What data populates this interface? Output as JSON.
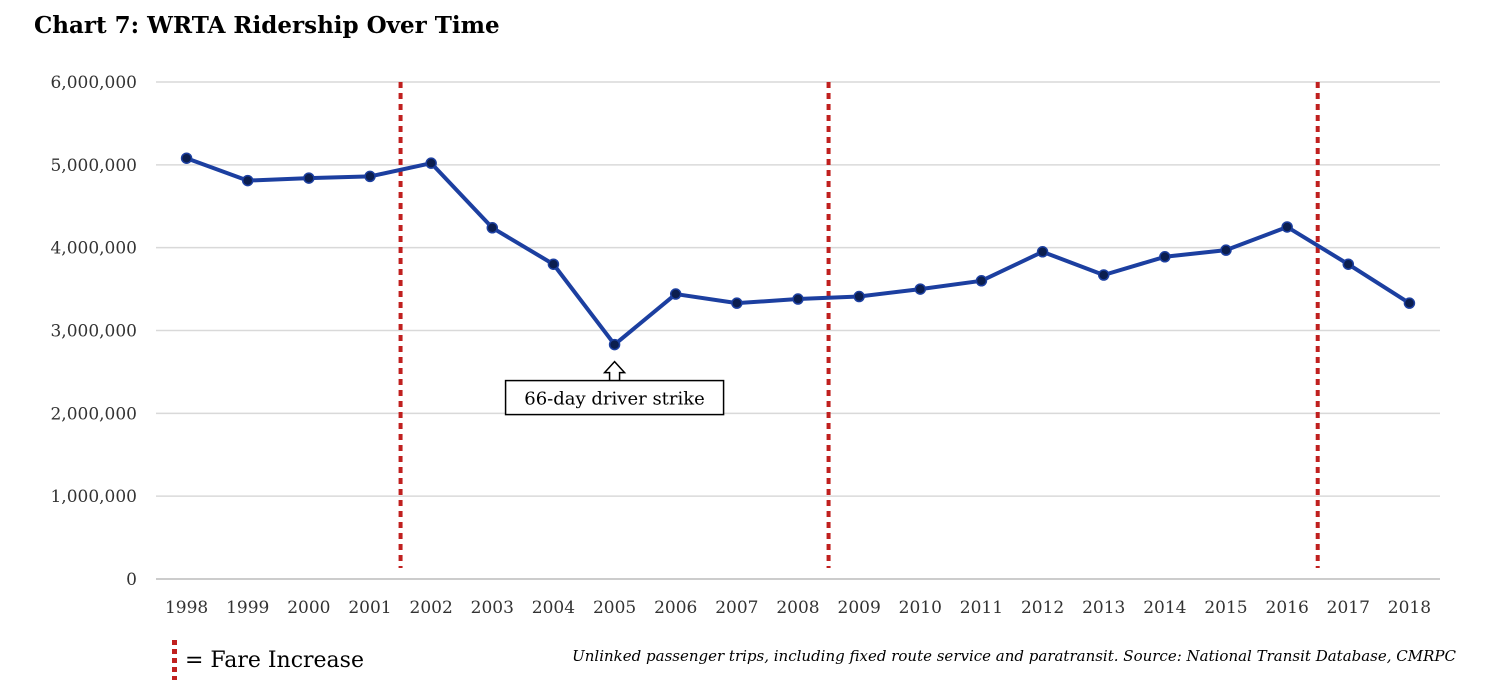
{
  "chart_data": {
    "type": "line",
    "title": "Chart 7: WRTA Ridership Over Time",
    "xlabel": "",
    "ylabel": "",
    "categories": [
      "1998",
      "1999",
      "2000",
      "2001",
      "2002",
      "2003",
      "2004",
      "2005",
      "2006",
      "2007",
      "2008",
      "2009",
      "2010",
      "2011",
      "2012",
      "2013",
      "2014",
      "2015",
      "2016",
      "2017",
      "2018"
    ],
    "series": [
      {
        "name": "WRTA Ridership",
        "color": "#1c3fa0",
        "values": [
          5080000,
          4810000,
          4840000,
          4860000,
          5020000,
          4240000,
          3800000,
          2830000,
          3440000,
          3330000,
          3380000,
          3410000,
          3500000,
          3600000,
          3950000,
          3670000,
          3890000,
          3970000,
          4250000,
          3800000,
          3330000
        ]
      }
    ],
    "ylim": [
      0,
      6000000
    ],
    "yticks": [
      0,
      1000000,
      2000000,
      3000000,
      4000000,
      5000000,
      6000000
    ],
    "ytick_labels": [
      "0",
      "1,000,000",
      "2,000,000",
      "3,000,000",
      "4,000,000",
      "5,000,000",
      "6,000,000"
    ],
    "grid": true,
    "fare_increases_after": [
      "2001",
      "2008",
      "2016"
    ],
    "fare_line_color": "#c0201f",
    "annotation": {
      "text": "66-day driver strike",
      "year": "2005"
    },
    "legend": {
      "label": "= Fare Increase",
      "placement": "bottom-left"
    },
    "source": "Unlinked passenger trips, including fixed route service and paratransit. Source: National Transit Database, CMRPC"
  }
}
